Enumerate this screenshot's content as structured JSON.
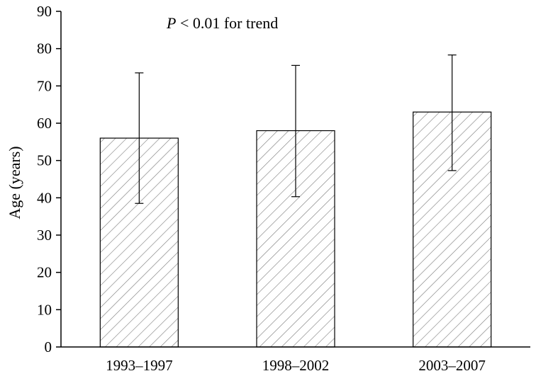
{
  "chart_data": {
    "type": "bar",
    "categories": [
      "1993–1997",
      "1998–2002",
      "2003–2007"
    ],
    "values": [
      56,
      58,
      63
    ],
    "error_upper": [
      73.5,
      75.5,
      78.3
    ],
    "error_lower": [
      38.5,
      40.3,
      47.3
    ],
    "title": "",
    "xlabel": "",
    "ylabel": "Age (years)",
    "ylim": [
      0,
      90
    ],
    "yticks": [
      0,
      10,
      20,
      30,
      40,
      50,
      60,
      70,
      80,
      90
    ],
    "annotation": {
      "italic": "P",
      "rest": " < 0.01 for trend"
    },
    "grid": false,
    "legend": "none",
    "bar_fill": "diagonal-hatch",
    "colors": {
      "hatch": "#7a7a7a",
      "outline": "#000000",
      "axis": "#000000"
    }
  }
}
